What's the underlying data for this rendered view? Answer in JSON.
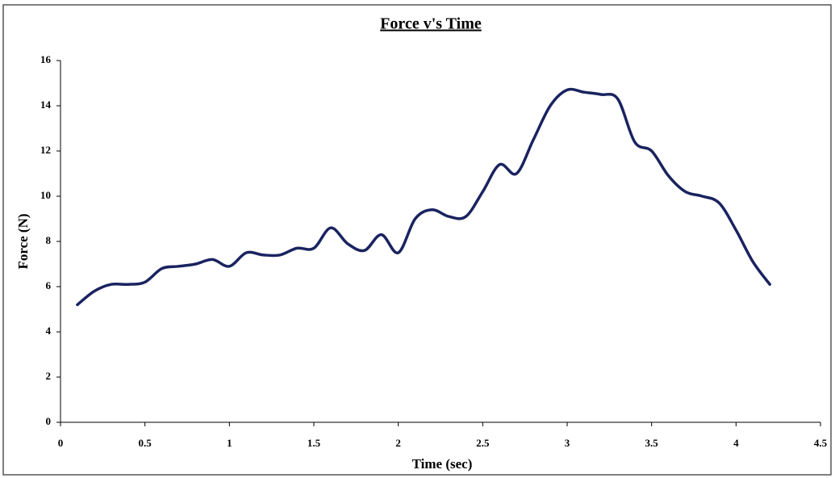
{
  "chart_data": {
    "type": "line",
    "title": "Force v's Time",
    "x_label": "Time (sec)",
    "y_label": "Force (N)",
    "x": [
      0.1,
      0.2,
      0.3,
      0.4,
      0.5,
      0.6,
      0.7,
      0.8,
      0.9,
      1.0,
      1.1,
      1.2,
      1.3,
      1.4,
      1.5,
      1.6,
      1.7,
      1.8,
      1.9,
      2.0,
      2.1,
      2.2,
      2.3,
      2.4,
      2.5,
      2.6,
      2.7,
      2.8,
      2.9,
      3.0,
      3.1,
      3.2,
      3.3,
      3.4,
      3.5,
      3.6,
      3.7,
      3.8,
      3.9,
      4.0,
      4.1,
      4.2
    ],
    "values": [
      5.2,
      5.8,
      6.1,
      6.1,
      6.2,
      6.8,
      6.9,
      7.0,
      7.2,
      6.9,
      7.5,
      7.4,
      7.4,
      7.7,
      7.7,
      8.6,
      7.9,
      7.6,
      8.3,
      7.5,
      9.0,
      9.4,
      9.1,
      9.1,
      10.2,
      11.4,
      11.0,
      12.5,
      14.0,
      14.7,
      14.6,
      14.5,
      14.3,
      12.4,
      12.0,
      10.9,
      10.2,
      10.0,
      9.7,
      8.5,
      7.1,
      6.1
    ],
    "color": "#1a2360",
    "xlim": [
      0,
      4.5
    ],
    "xticks": [
      0,
      0.5,
      1,
      1.5,
      2,
      2.5,
      3,
      3.5,
      4,
      4.5
    ],
    "ylim": [
      0,
      16
    ],
    "yticks": [
      0,
      2,
      4,
      6,
      8,
      10,
      12,
      14,
      16
    ],
    "smooth": true
  }
}
